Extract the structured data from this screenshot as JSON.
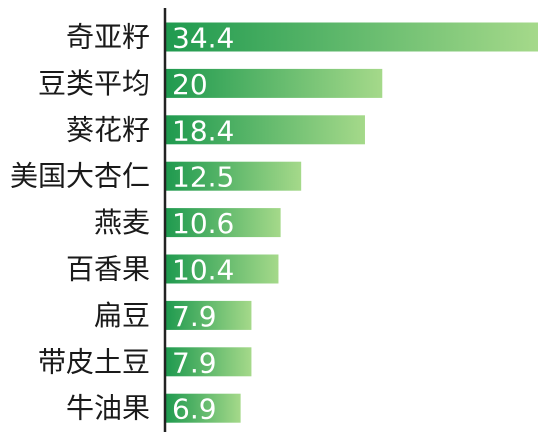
{
  "chart_data": {
    "type": "bar",
    "orientation": "horizontal",
    "categories": [
      "奇亚籽",
      "豆类平均",
      "葵花籽",
      "美国大杏仁",
      "燕麦",
      "百香果",
      "扁豆",
      "带皮土豆",
      "牛油果"
    ],
    "values": [
      34.4,
      20,
      18.4,
      12.5,
      10.6,
      10.4,
      7.9,
      7.9,
      6.9
    ],
    "value_labels": [
      "34.4",
      "20",
      "18.4",
      "12.5",
      "10.6",
      "10.4",
      "7.9",
      "7.9",
      "6.9"
    ],
    "title": "",
    "xlabel": "",
    "ylabel": "",
    "xlim": [
      0,
      34.4
    ],
    "grid": false,
    "legend": "none",
    "colors": {
      "bar_start": "#1f9a4f",
      "bar_end": "#a5d98a",
      "axis": "#222222"
    }
  }
}
